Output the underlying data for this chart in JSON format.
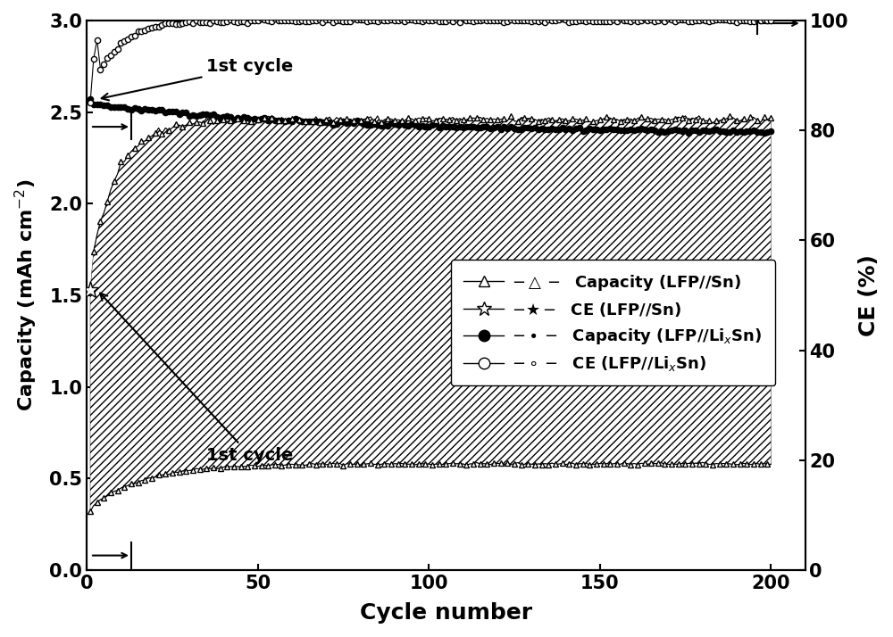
{
  "title": "",
  "xlabel": "Cycle number",
  "ylabel_left": "Capacity (mAh cm$^{-2}$)",
  "ylabel_right": "CE (%)",
  "xlim": [
    0,
    210
  ],
  "ylim_left": [
    0,
    3.0
  ],
  "ylim_right": [
    0,
    100
  ],
  "xticks": [
    0,
    50,
    100,
    150,
    200
  ],
  "yticks_left": [
    0.0,
    0.5,
    1.0,
    1.5,
    2.0,
    2.5,
    3.0
  ],
  "yticks_right": [
    0,
    20,
    40,
    60,
    80,
    100
  ],
  "bg_color": "white",
  "line_color": "black"
}
